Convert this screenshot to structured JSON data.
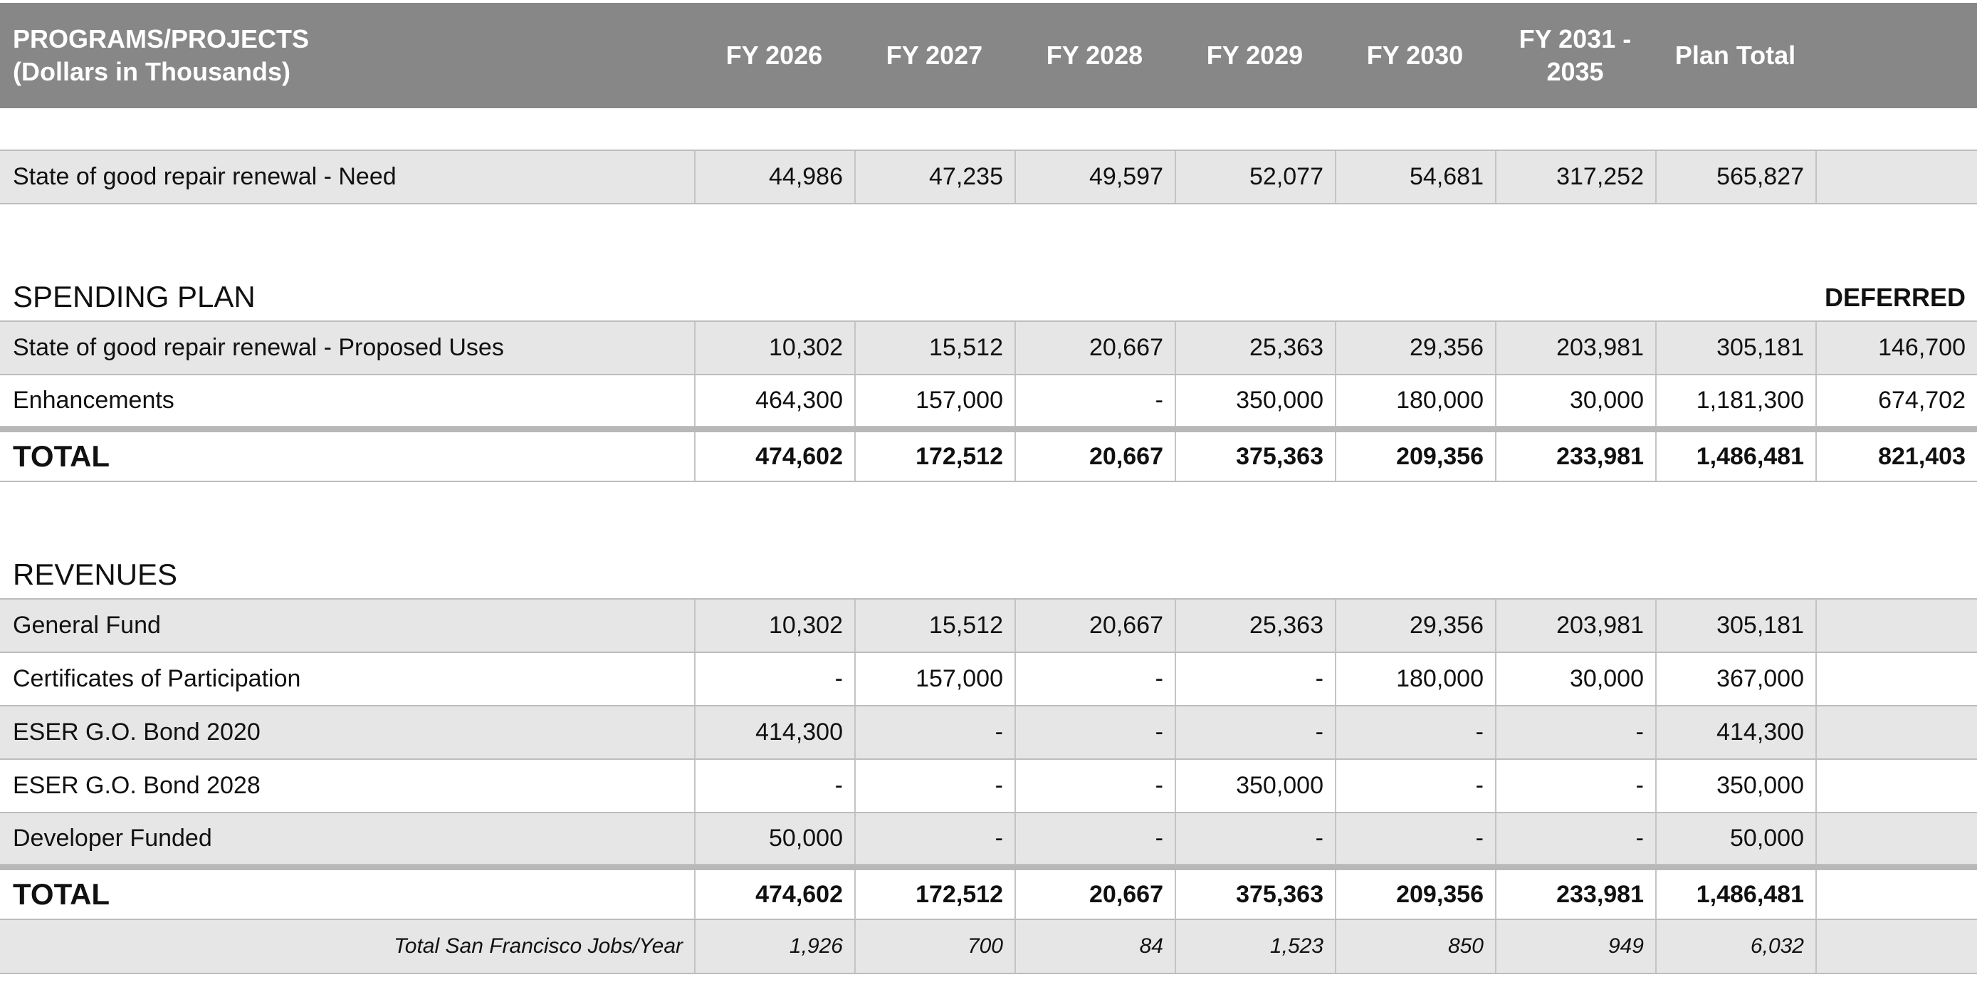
{
  "header": {
    "line1": "PROGRAMS/PROJECTS",
    "line2": "(Dollars in Thousands)",
    "columns": [
      "FY 2026",
      "FY 2027",
      "FY 2028",
      "FY 2029",
      "FY 2030",
      "FY 2031 -",
      "Plan Total"
    ],
    "col6_line2": "2035"
  },
  "need": {
    "label": "State of good repair renewal - Need",
    "values": [
      "44,986",
      "47,235",
      "49,597",
      "52,077",
      "54,681",
      "317,252",
      "565,827",
      ""
    ]
  },
  "spending": {
    "title": "SPENDING PLAN",
    "deferred_label": "DEFERRED",
    "rows": [
      {
        "label": "State of good repair renewal - Proposed Uses",
        "values": [
          "10,302",
          "15,512",
          "20,667",
          "25,363",
          "29,356",
          "203,981",
          "305,181",
          "146,700"
        ]
      },
      {
        "label": "Enhancements",
        "values": [
          "464,300",
          "157,000",
          "-",
          "350,000",
          "180,000",
          "30,000",
          "1,181,300",
          "674,702"
        ]
      }
    ],
    "total": {
      "label": "TOTAL",
      "values": [
        "474,602",
        "172,512",
        "20,667",
        "375,363",
        "209,356",
        "233,981",
        "1,486,481",
        "821,403"
      ]
    }
  },
  "revenues": {
    "title": "REVENUES",
    "rows": [
      {
        "label": "General Fund",
        "values": [
          "10,302",
          "15,512",
          "20,667",
          "25,363",
          "29,356",
          "203,981",
          "305,181",
          ""
        ]
      },
      {
        "label": "Certificates of Participation",
        "values": [
          "-",
          "157,000",
          "-",
          "-",
          "180,000",
          "30,000",
          "367,000",
          ""
        ]
      },
      {
        "label": "ESER G.O. Bond 2020",
        "values": [
          "414,300",
          "-",
          "-",
          "-",
          "-",
          "-",
          "414,300",
          ""
        ]
      },
      {
        "label": "ESER G.O. Bond 2028",
        "values": [
          "-",
          "-",
          "-",
          "350,000",
          "-",
          "-",
          "350,000",
          ""
        ]
      },
      {
        "label": "Developer Funded",
        "values": [
          "50,000",
          "-",
          "-",
          "-",
          "-",
          "-",
          "50,000",
          ""
        ]
      }
    ],
    "total": {
      "label": "TOTAL",
      "values": [
        "474,602",
        "172,512",
        "20,667",
        "375,363",
        "209,356",
        "233,981",
        "1,486,481",
        ""
      ]
    },
    "jobs": {
      "label": "Total San Francisco Jobs/Year",
      "values": [
        "1,926",
        "700",
        "84",
        "1,523",
        "850",
        "949",
        "6,032",
        ""
      ]
    }
  }
}
